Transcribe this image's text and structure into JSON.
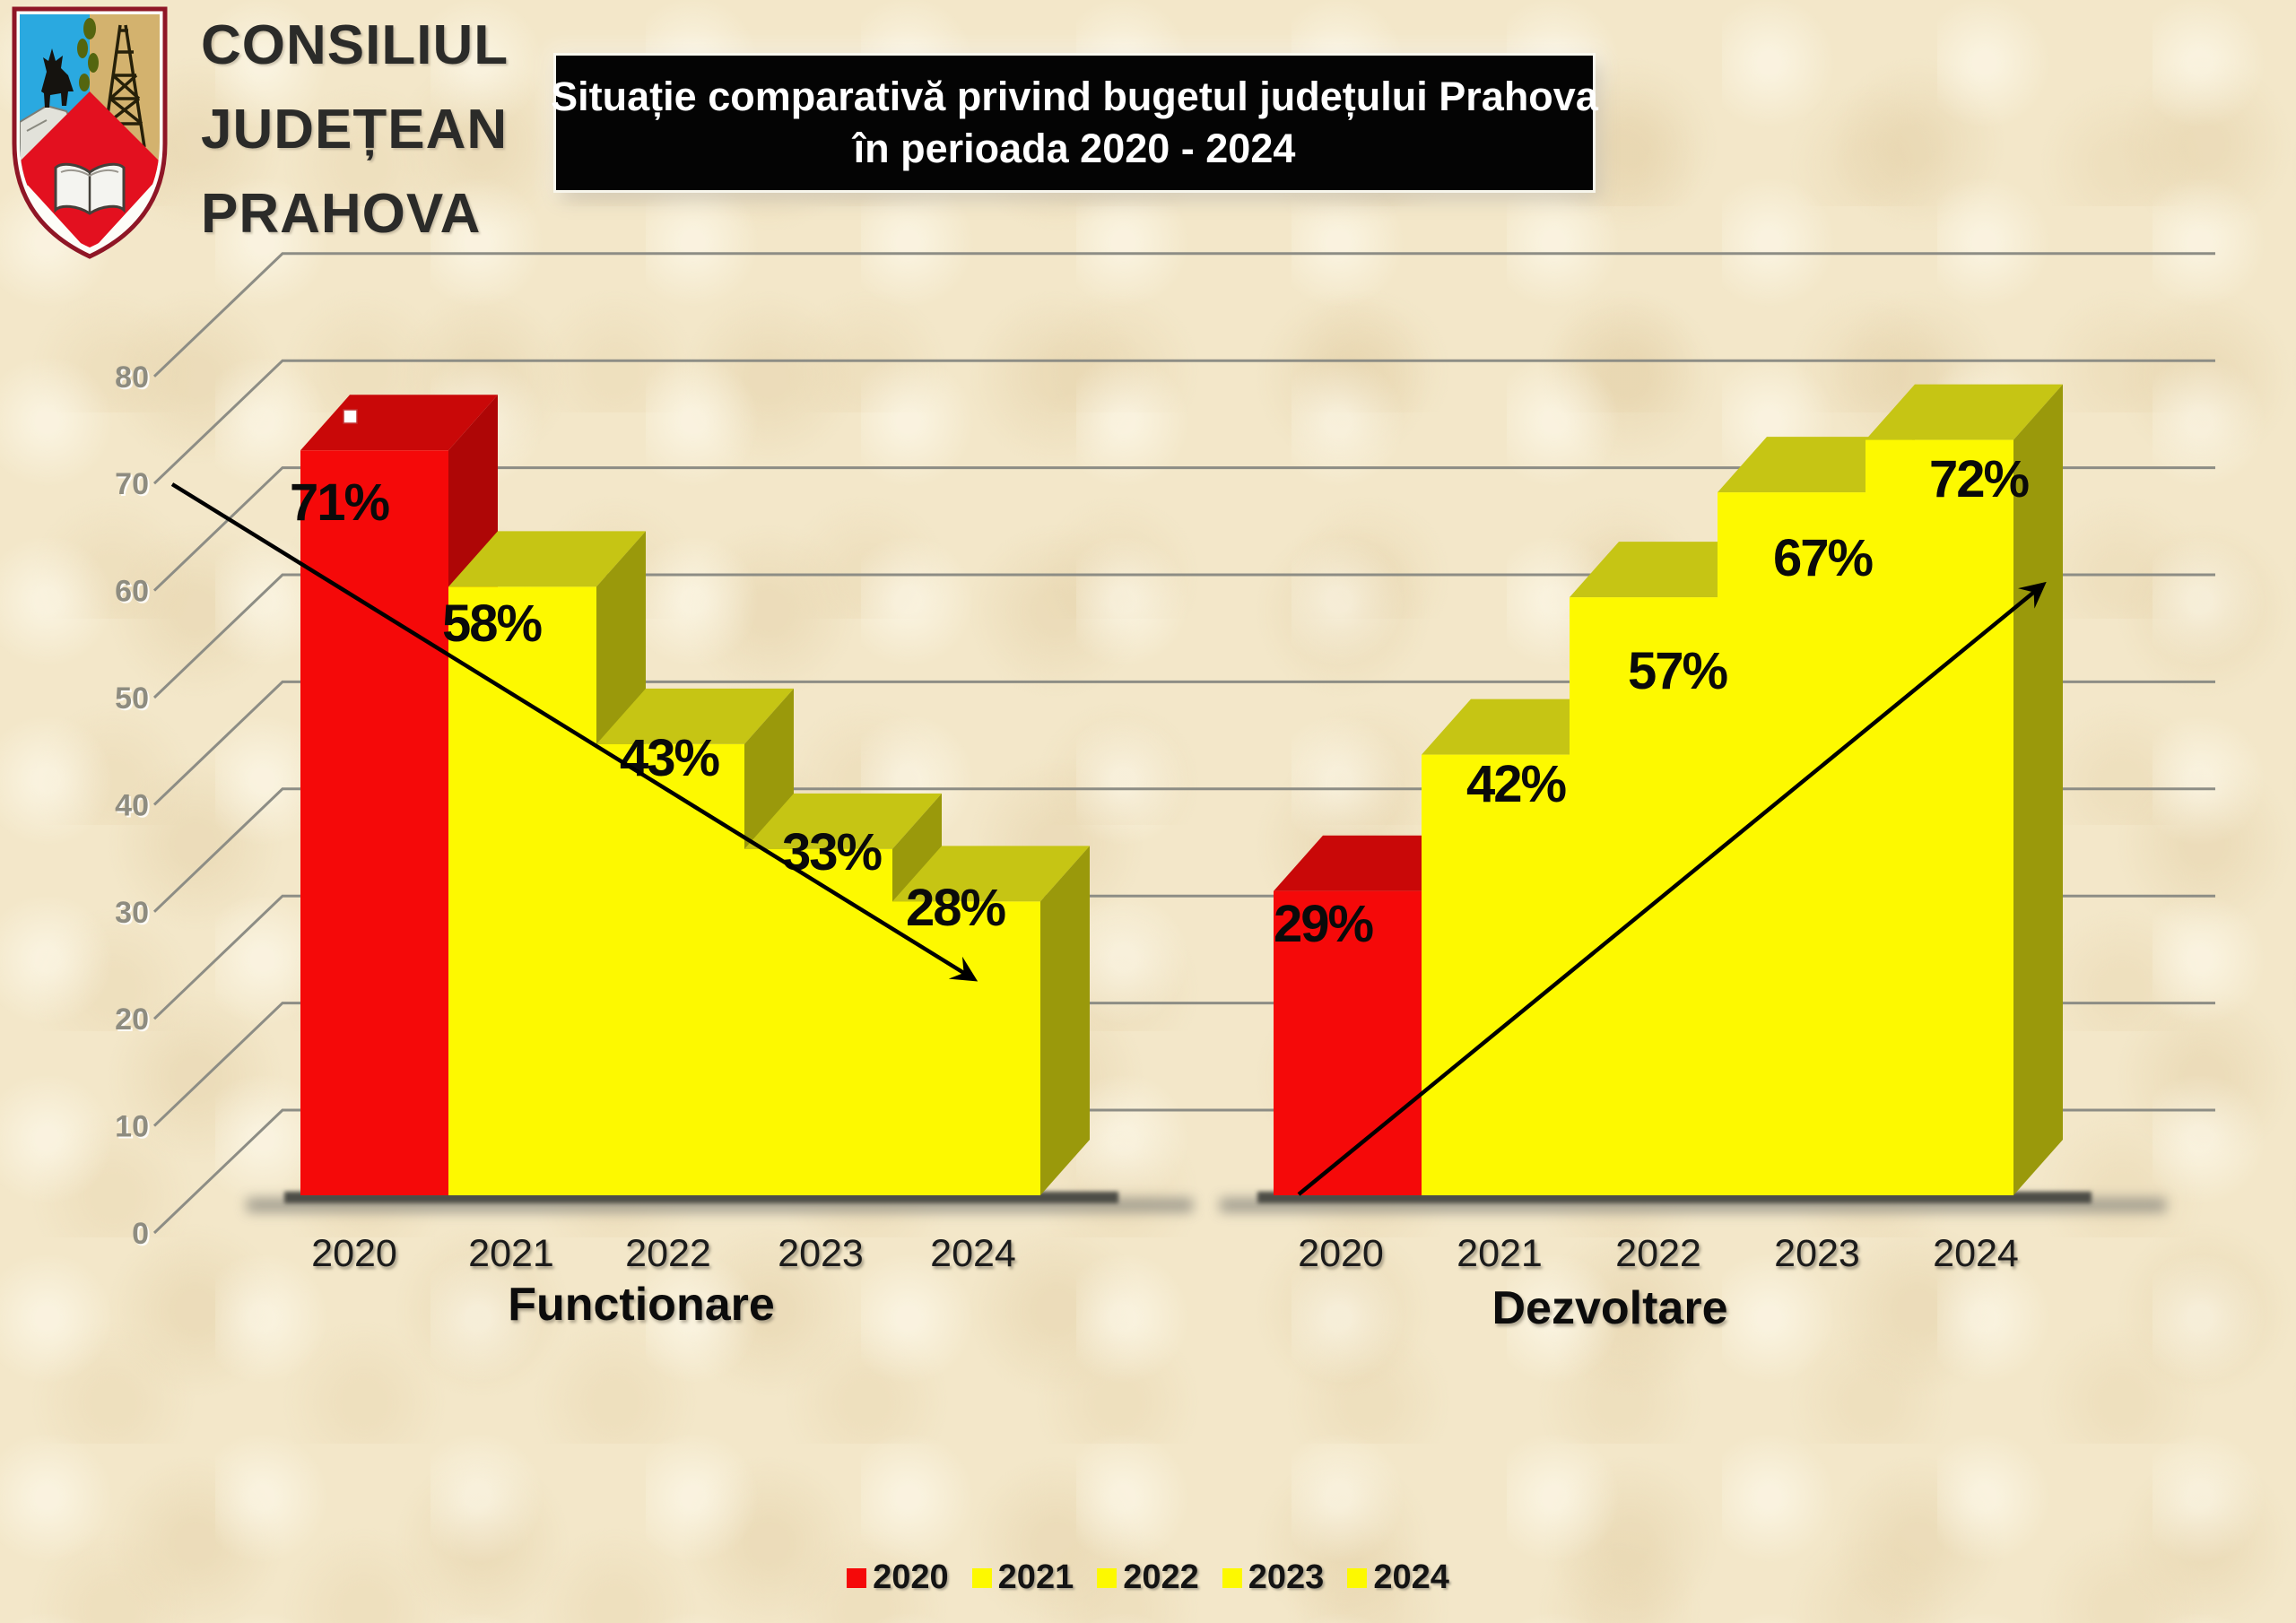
{
  "logo": {
    "org_lines": [
      "CONSILIUL",
      "JUDEȚEAN",
      "PRAHOVA"
    ]
  },
  "title": {
    "line1": "Situație comparativă privind bugetul județului Prahova",
    "line2": "în perioada 2020 - 2024",
    "background": "#040404",
    "text_color": "#ffffff"
  },
  "chart_data": {
    "type": "bar",
    "style": "3d-step-perspective",
    "title": "Situație comparativă privind bugetul județului Prahova în perioada 2020 - 2024",
    "categories": [
      "2020",
      "2021",
      "2022",
      "2023",
      "2024"
    ],
    "groups": [
      {
        "name": "Functionare",
        "values": [
          71,
          58,
          43,
          33,
          28
        ],
        "value_labels": [
          "71%",
          "58%",
          "43%",
          "33%",
          "28%"
        ],
        "trend_arrow": "descending"
      },
      {
        "name": "Dezvoltare",
        "values": [
          29,
          42,
          57,
          67,
          72
        ],
        "value_labels": [
          "29%",
          "42%",
          "57%",
          "67%",
          "72%"
        ],
        "trend_arrow": "ascending"
      }
    ],
    "yticks": [
      0,
      10,
      20,
      30,
      40,
      50,
      60,
      70,
      80
    ],
    "ylim": [
      0,
      80
    ],
    "grid": true,
    "legend_position": "bottom-center",
    "colors": {
      "red_front": "#f50909",
      "red_top": "#c90808",
      "red_side": "#ae0606",
      "yellow_front": "#fdf900",
      "yellow_top": "#c6c514",
      "yellow_side": "#9a990b",
      "gridline": "#8d8d85",
      "arrow": "#000000",
      "background": "#f3e7c9"
    },
    "legend": {
      "items": [
        {
          "label": "2020",
          "color": "#f50909"
        },
        {
          "label": "2021",
          "color": "#fdf900"
        },
        {
          "label": "2022",
          "color": "#fdf900"
        },
        {
          "label": "2023",
          "color": "#fdf900"
        },
        {
          "label": "2024",
          "color": "#fdf900"
        }
      ]
    }
  }
}
